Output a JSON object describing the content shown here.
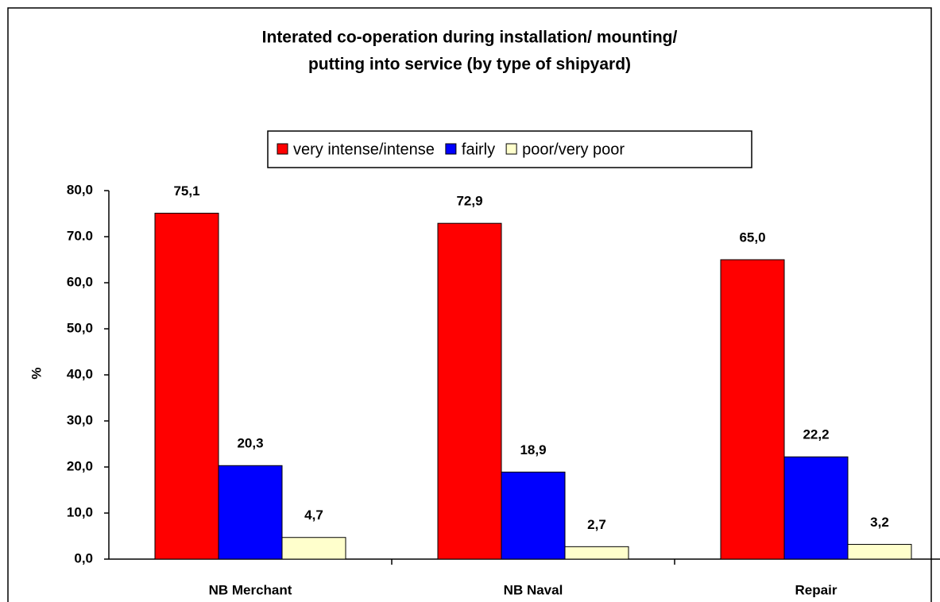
{
  "chart_data": {
    "type": "bar",
    "title": [
      "Interated co-operation during installation/ mounting/",
      "putting into service (by type of shipyard)"
    ],
    "y_label": "%",
    "categories": [
      "NB Merchant",
      "NB Naval",
      "Repair"
    ],
    "series": [
      {
        "name": "very intense/intense",
        "color": "#ff0000",
        "values": [
          75.1,
          72.9,
          65.0
        ],
        "value_labels": [
          "75,1",
          "72,9",
          "65,0"
        ]
      },
      {
        "name": "fairly",
        "color": "#0000ff",
        "values": [
          20.3,
          18.9,
          22.2
        ],
        "value_labels": [
          "20,3",
          "18,9",
          "22,2"
        ]
      },
      {
        "name": "poor/very poor",
        "color": "#ffffcc",
        "values": [
          4.7,
          2.7,
          3.2
        ],
        "value_labels": [
          "4,7",
          "2,7",
          "3,2"
        ]
      }
    ],
    "ylim": [
      0,
      80
    ],
    "yticks": [
      {
        "value": 0,
        "label": "0,0"
      },
      {
        "value": 10,
        "label": "10,0"
      },
      {
        "value": 20,
        "label": "20,0"
      },
      {
        "value": 30,
        "label": "30,0"
      },
      {
        "value": 40,
        "label": "40,0"
      },
      {
        "value": 50,
        "label": "50,0"
      },
      {
        "value": 60,
        "label": "60,0"
      },
      {
        "value": 70,
        "label": "70.0"
      },
      {
        "value": 80,
        "label": "80,0"
      }
    ],
    "legend": "top",
    "grid": false
  }
}
